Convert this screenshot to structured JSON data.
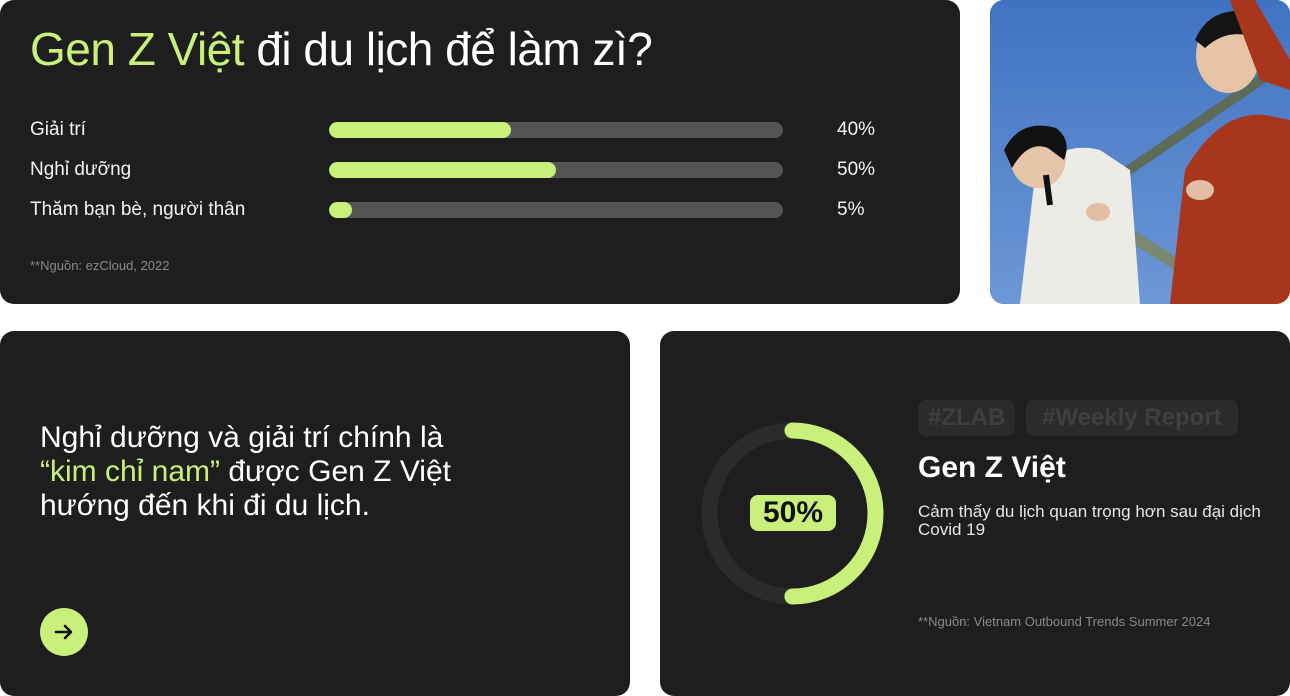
{
  "header": {
    "title_accent": "Gen Z Việt",
    "title_rest": " đi du lịch để làm zì?"
  },
  "bars": [
    {
      "label": "Giải trí",
      "value_text": "40%",
      "fraction": 0.4
    },
    {
      "label": "Nghỉ dưỡng",
      "value_text": "50%",
      "fraction": 0.5
    },
    {
      "label": "Thăm bạn bè, người thân",
      "value_text": "5%",
      "fraction": 0.05
    }
  ],
  "source_top": "**Nguồn: ezCloud, 2022",
  "photo": {
    "icon": "photo-two-people-on-railing"
  },
  "quote": {
    "line1": "Nghỉ dưỡng và giải trí chính là",
    "highlight": "“kim chỉ nam”",
    "line2": " được Gen Z Việt hướng đến khi đi du lịch."
  },
  "arrow_icon": "arrow-right-icon",
  "stat": {
    "value_text": "50%",
    "fraction": 0.5,
    "tags": [
      "#ZLAB",
      "#Weekly Report"
    ],
    "title": "Gen Z Việt",
    "description": "Cảm thấy du lịch quan trọng hơn sau đại dịch Covid 19",
    "source": "**Nguồn: Vietnam Outbound Trends Summer 2024"
  },
  "colors": {
    "accent": "#c8f07a",
    "card": "#1e1e1e",
    "track": "#555555"
  }
}
